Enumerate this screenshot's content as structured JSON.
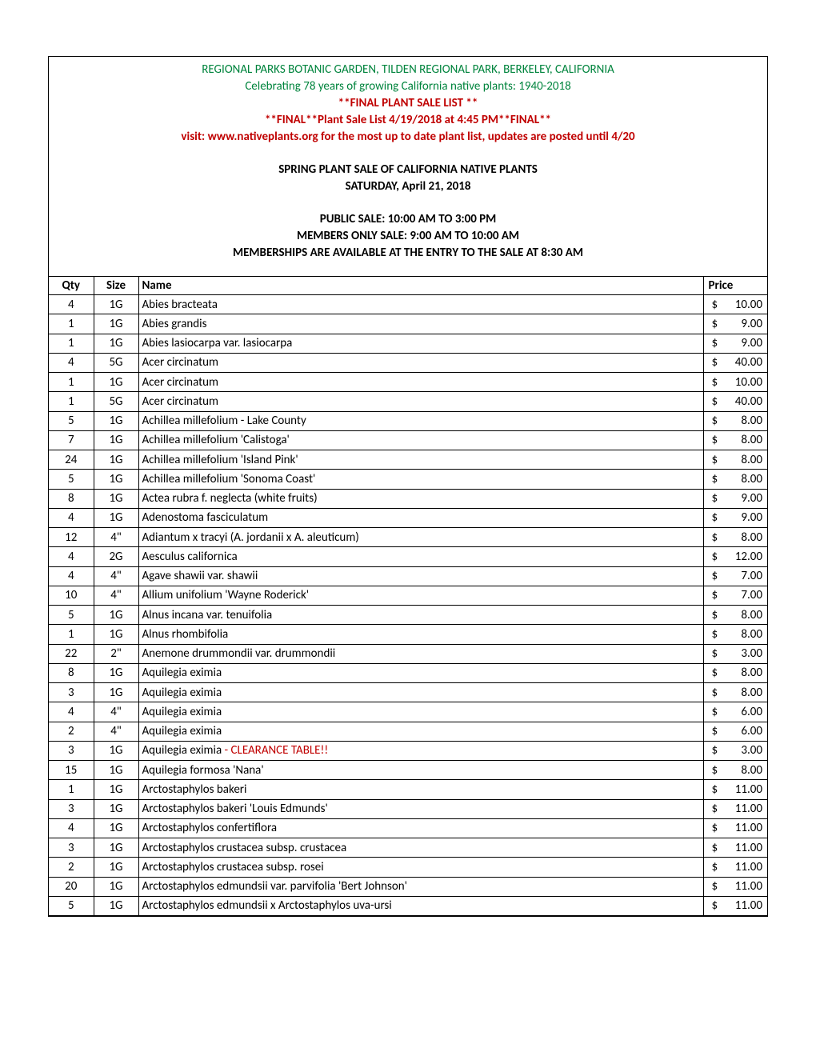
{
  "header": {
    "line1": "REGIONAL PARKS BOTANIC GARDEN, TILDEN REGIONAL PARK, BERKELEY, CALIFORNIA",
    "line2": "Celebrating 78 years of growing California native plants: 1940-2018",
    "line3": "**FINAL PLANT SALE LIST **",
    "line4": "**FINAL**Plant Sale List 4/19/2018 at 4:45 PM**FINAL**",
    "line5": "visit: www.nativeplants.org for the most up to date plant list, updates are posted until 4/20",
    "line6": "SPRING PLANT SALE OF CALIFORNIA NATIVE PLANTS",
    "line7": "SATURDAY, April 21, 2018",
    "line8": "PUBLIC SALE: 10:00 AM TO 3:00 PM",
    "line9": "MEMBERS ONLY SALE: 9:00 AM TO 10:00 AM",
    "line10": "MEMBERSHIPS ARE AVAILABLE AT THE ENTRY TO THE SALE AT 8:30 AM"
  },
  "columns": {
    "qty": "Qty",
    "size": "Size",
    "name": "Name",
    "price": "Price"
  },
  "clearance_text": " - CLEARANCE TABLE!!",
  "rows": [
    {
      "qty": "4",
      "size": "1G",
      "name": "Abies bracteata",
      "price": "10.00"
    },
    {
      "qty": "1",
      "size": "1G",
      "name": "Abies grandis",
      "price": "9.00"
    },
    {
      "qty": "1",
      "size": "1G",
      "name": "Abies lasiocarpa var. lasiocarpa",
      "price": "9.00"
    },
    {
      "qty": "4",
      "size": "5G",
      "name": "Acer circinatum",
      "price": "40.00"
    },
    {
      "qty": "1",
      "size": "1G",
      "name": "Acer circinatum",
      "price": "10.00"
    },
    {
      "qty": "1",
      "size": "5G",
      "name": "Acer circinatum",
      "price": "40.00"
    },
    {
      "qty": "5",
      "size": "1G",
      "name": "Achillea millefolium - Lake County",
      "price": "8.00"
    },
    {
      "qty": "7",
      "size": "1G",
      "name": "Achillea millefolium 'Calistoga'",
      "price": "8.00"
    },
    {
      "qty": "24",
      "size": "1G",
      "name": "Achillea millefolium 'Island Pink'",
      "price": "8.00"
    },
    {
      "qty": "5",
      "size": "1G",
      "name": "Achillea millefolium 'Sonoma Coast'",
      "price": "8.00"
    },
    {
      "qty": "8",
      "size": "1G",
      "name": "Actea rubra f. neglecta (white fruits)",
      "price": "9.00"
    },
    {
      "qty": "4",
      "size": "1G",
      "name": "Adenostoma fasciculatum",
      "price": "9.00"
    },
    {
      "qty": "12",
      "size": "4\"",
      "name": "Adiantum x tracyi (A. jordanii x A. aleuticum)",
      "price": "8.00"
    },
    {
      "qty": "4",
      "size": "2G",
      "name": "Aesculus californica",
      "price": "12.00"
    },
    {
      "qty": "4",
      "size": "4\"",
      "name": "Agave shawii var. shawii",
      "price": "7.00"
    },
    {
      "qty": "10",
      "size": "4\"",
      "name": "Allium unifolium 'Wayne Roderick'",
      "price": "7.00"
    },
    {
      "qty": "5",
      "size": "1G",
      "name": "Alnus incana var. tenuifolia",
      "price": "8.00"
    },
    {
      "qty": "1",
      "size": "1G",
      "name": "Alnus rhombifolia",
      "price": "8.00"
    },
    {
      "qty": "22",
      "size": "2\"",
      "name": "Anemone drummondii var. drummondii",
      "price": "3.00"
    },
    {
      "qty": "8",
      "size": "1G",
      "name": "Aquilegia eximia",
      "price": "8.00"
    },
    {
      "qty": "3",
      "size": "1G",
      "name": "Aquilegia eximia",
      "price": "8.00"
    },
    {
      "qty": "4",
      "size": "4\"",
      "name": "Aquilegia eximia",
      "price": "6.00"
    },
    {
      "qty": "2",
      "size": "4\"",
      "name": "Aquilegia eximia",
      "price": "6.00"
    },
    {
      "qty": "3",
      "size": "1G",
      "name": "Aquilegia eximia",
      "clearance": true,
      "price": "3.00"
    },
    {
      "qty": "15",
      "size": "1G",
      "name": "Aquilegia formosa 'Nana'",
      "price": "8.00"
    },
    {
      "qty": "1",
      "size": "1G",
      "name": "Arctostaphylos bakeri",
      "price": "11.00"
    },
    {
      "qty": "3",
      "size": "1G",
      "name": "Arctostaphylos bakeri 'Louis Edmunds'",
      "price": "11.00"
    },
    {
      "qty": "4",
      "size": "1G",
      "name": "Arctostaphylos confertiflora",
      "price": "11.00"
    },
    {
      "qty": "3",
      "size": "1G",
      "name": "Arctostaphylos crustacea subsp. crustacea",
      "price": "11.00"
    },
    {
      "qty": "2",
      "size": "1G",
      "name": "Arctostaphylos crustacea subsp. rosei",
      "price": "11.00"
    },
    {
      "qty": "20",
      "size": "1G",
      "name": "Arctostaphylos edmundsii var. parvifolia 'Bert Johnson'",
      "price": "11.00"
    },
    {
      "qty": "5",
      "size": "1G",
      "name": "Arctostaphylos edmundsii x Arctostaphylos uva-ursi",
      "price": "11.00"
    }
  ]
}
